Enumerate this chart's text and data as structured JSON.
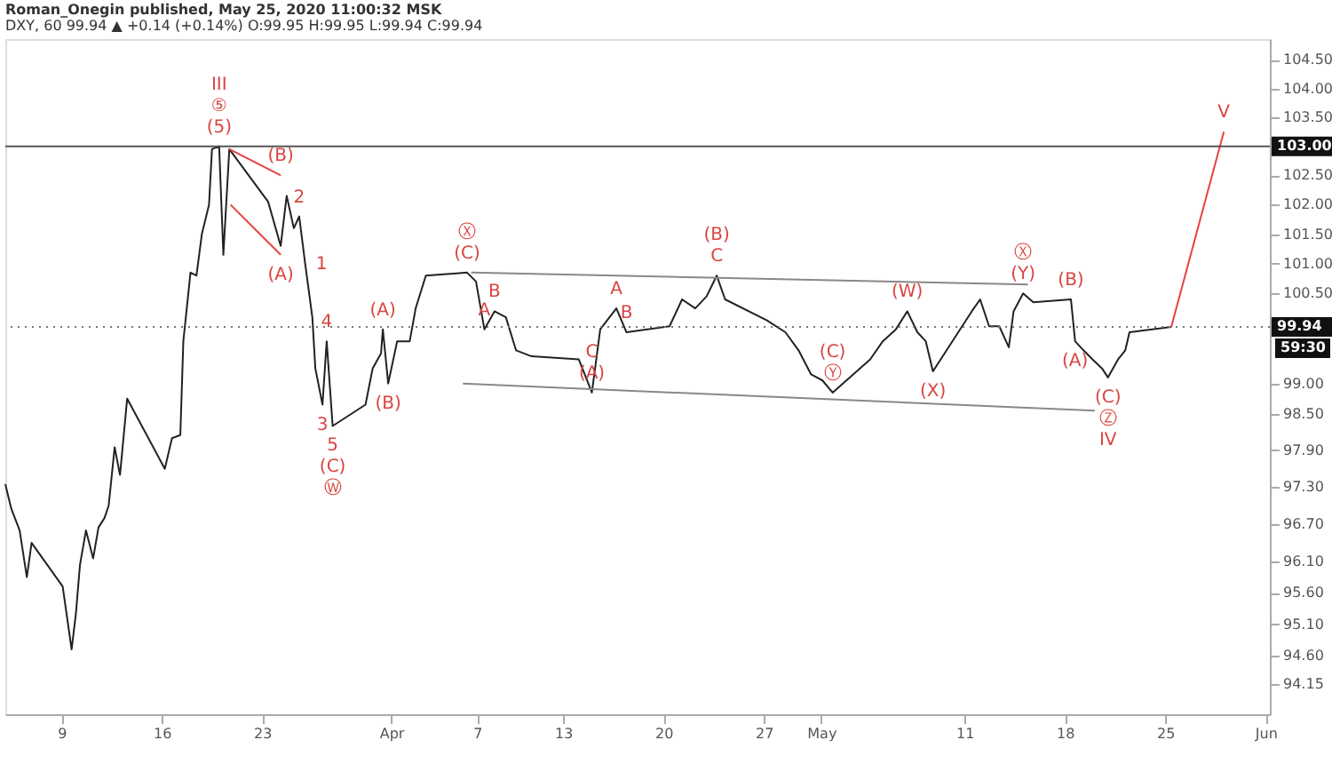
{
  "chart_data": {
    "type": "line",
    "title": "Roman_Onegin published, May 25, 2020 11:00:32 MSK",
    "subtitle": "DXY, 60  99.94 ▲ +0.14 (+0.14%) O:99.95 H:99.95 L:99.94 C:99.94",
    "log": "y",
    "grid": false,
    "line_style": "solid",
    "marker": "none",
    "xlim": [
      "2020-03-05T02:00",
      "2020-06-01T07:00"
    ],
    "xticks": [
      {
        "value": "2020-03-09",
        "label": "9"
      },
      {
        "value": "2020-03-16",
        "label": "16"
      },
      {
        "value": "2020-03-23",
        "label": "23"
      },
      {
        "value": "2020-04-01",
        "label": "Apr"
      },
      {
        "value": "2020-04-07",
        "label": "7"
      },
      {
        "value": "2020-04-13",
        "label": "13"
      },
      {
        "value": "2020-04-20",
        "label": "20"
      },
      {
        "value": "2020-04-27",
        "label": "27"
      },
      {
        "value": "2020-05-01",
        "label": "May"
      },
      {
        "value": "2020-05-11",
        "label": "11"
      },
      {
        "value": "2020-05-18",
        "label": "18"
      },
      {
        "value": "2020-05-25",
        "label": "25"
      },
      {
        "value": "2020-06-01",
        "label": "Jun"
      }
    ],
    "ylim": [
      93.68,
      104.86
    ],
    "yticks": [
      {
        "value": 94.15,
        "label": "94.15"
      },
      {
        "value": 94.6,
        "label": "94.60"
      },
      {
        "value": 95.1,
        "label": "95.10"
      },
      {
        "value": 95.6,
        "label": "95.60"
      },
      {
        "value": 96.1,
        "label": "96.10"
      },
      {
        "value": 96.7,
        "label": "96.70"
      },
      {
        "value": 97.3,
        "label": "97.30"
      },
      {
        "value": 97.9,
        "label": "97.90"
      },
      {
        "value": 98.5,
        "label": "98.50"
      },
      {
        "value": 99,
        "label": "99.00"
      },
      {
        "value": 100.5,
        "label": "100.50"
      },
      {
        "value": 101,
        "label": "101.00"
      },
      {
        "value": 101.5,
        "label": "101.50"
      },
      {
        "value": 102,
        "label": "102.00"
      },
      {
        "value": 102.5,
        "label": "102.50"
      },
      {
        "value": 103.5,
        "label": "103.50"
      },
      {
        "value": 104,
        "label": "104.00"
      },
      {
        "value": 104.5,
        "label": "104.50"
      }
    ],
    "ref_lines": [
      {
        "axis": "y",
        "value": 103.0,
        "label": "103.00",
        "color": "#555555",
        "line_style": "solid"
      },
      {
        "axis": "y",
        "value": 99.94,
        "label": "99.94",
        "color": "#777777",
        "line_style": "dotted"
      }
    ],
    "series": [
      {
        "color": "#222222",
        "x": [
          "2020-03-05T02:00",
          "2020-03-05T12:00",
          "2020-03-06T02:00",
          "2020-03-06T14:00",
          "2020-03-06T22:00",
          "2020-03-09T02:00",
          "2020-03-09T17:00",
          "2020-03-09T22:00",
          "2020-03-10T00:00",
          "2020-03-10T07:00",
          "2020-03-10T17:00",
          "2020-03-11T05:00",
          "2020-03-11T14:00",
          "2020-03-12T00:00",
          "2020-03-12T07:00",
          "2020-03-12T17:00",
          "2020-03-13T02:00",
          "2020-03-13T14:00",
          "2020-03-16T05:00",
          "2020-03-16T17:00",
          "2020-03-17T07:00",
          "2020-03-17T12:00",
          "2020-03-18T00:00",
          "2020-03-18T10:00",
          "2020-03-18T19:00",
          "2020-03-19T07:00",
          "2020-03-19T12:00",
          "2020-03-20T00:00",
          "2020-03-20T07:00",
          "2020-03-20T17:00",
          "2020-03-23T10:00",
          "2020-03-24T07:00",
          "2020-03-24T17:00",
          "2020-03-25T05:00",
          "2020-03-25T14:00",
          "2020-03-26T00:00",
          "2020-03-26T12:00",
          "2020-03-26T17:00",
          "2020-03-27T05:00",
          "2020-03-27T12:00",
          "2020-03-27T22:00",
          "2020-03-30T05:00",
          "2020-03-30T17:00",
          "2020-03-31T07:00",
          "2020-03-31T10:00",
          "2020-03-31T19:00",
          "2020-04-01T10:00",
          "2020-04-02T07:00",
          "2020-04-02T17:00",
          "2020-04-03T10:00",
          "2020-04-06T07:00",
          "2020-04-06T22:00",
          "2020-04-07T12:00",
          "2020-04-08T05:00",
          "2020-04-09T00:00",
          "2020-04-09T17:00",
          "2020-04-10T19:00",
          "2020-04-14T02:00",
          "2020-04-15T00:00",
          "2020-04-15T14:00",
          "2020-04-16T17:00",
          "2020-04-17T10:00",
          "2020-04-20T10:00",
          "2020-04-21T07:00",
          "2020-04-22T05:00",
          "2020-04-23T00:00",
          "2020-04-23T17:00",
          "2020-04-24T07:00",
          "2020-04-27T05:00",
          "2020-04-28T12:00",
          "2020-04-29T10:00",
          "2020-04-30T07:00",
          "2020-05-01T02:00",
          "2020-05-01T19:00",
          "2020-05-04T10:00",
          "2020-05-05T07:00",
          "2020-05-06T05:00",
          "2020-05-07T00:00",
          "2020-05-07T17:00",
          "2020-05-08T07:00",
          "2020-05-08T19:00",
          "2020-05-11T12:00",
          "2020-05-12T02:00",
          "2020-05-12T17:00",
          "2020-05-13T10:00",
          "2020-05-14T02:00",
          "2020-05-14T10:00",
          "2020-05-15T02:00",
          "2020-05-15T19:00",
          "2020-05-18T10:00",
          "2020-05-18T17:00",
          "2020-05-19T07:00",
          "2020-05-19T22:00",
          "2020-05-20T14:00",
          "2020-05-21T00:00",
          "2020-05-21T17:00",
          "2020-05-22T05:00",
          "2020-05-22T12:00",
          "2020-05-25T10:00"
        ],
        "values": [
          97.35,
          96.95,
          96.6,
          95.85,
          96.4,
          95.7,
          94.7,
          95.1,
          95.25,
          96.05,
          96.6,
          96.15,
          96.65,
          96.8,
          97.0,
          97.95,
          97.5,
          98.75,
          97.6,
          98.1,
          98.15,
          99.7,
          100.85,
          100.8,
          101.5,
          102.0,
          102.95,
          103.0,
          101.15,
          102.95,
          102.05,
          101.3,
          102.15,
          101.6,
          101.8,
          101.0,
          100.1,
          99.25,
          98.65,
          99.7,
          98.3,
          98.65,
          99.25,
          99.5,
          99.9,
          99.0,
          99.7,
          99.7,
          100.25,
          100.8,
          100.85,
          100.7,
          99.9,
          100.2,
          100.1,
          99.55,
          99.45,
          99.4,
          98.85,
          99.9,
          100.25,
          99.85,
          99.95,
          100.4,
          100.25,
          100.45,
          100.8,
          100.4,
          100.05,
          99.85,
          99.55,
          99.15,
          99.05,
          98.85,
          99.4,
          99.7,
          99.9,
          100.2,
          99.85,
          99.7,
          99.2,
          100.2,
          100.4,
          99.95,
          99.95,
          99.6,
          100.2,
          100.5,
          100.35,
          100.4,
          99.7,
          99.55,
          99.4,
          99.25,
          99.1,
          99.4,
          99.55,
          99.85,
          99.94
        ]
      },
      {
        "color": "#888888",
        "x": [
          "2020-04-06T14:00",
          "2020-05-15T10:00"
        ],
        "values": [
          100.85,
          100.65
        ]
      },
      {
        "color": "#888888",
        "x": [
          "2020-04-06T00:00",
          "2020-05-20T02:00"
        ],
        "values": [
          99.0,
          98.55
        ]
      },
      {
        "color": "#e8413e",
        "x": [
          "2020-03-20T17:00",
          "2020-03-24T07:00"
        ],
        "values": [
          102.95,
          102.5
        ]
      },
      {
        "color": "#e8413e",
        "x": [
          "2020-03-20T19:00",
          "2020-03-24T07:00"
        ],
        "values": [
          102.0,
          101.15
        ]
      },
      {
        "color": "#e8413e",
        "x": [
          "2020-05-25T10:00",
          "2020-05-29T02:00"
        ],
        "values": [
          99.94,
          103.25
        ]
      }
    ],
    "annotations": [
      {
        "text": "III",
        "x": "2020-03-20T00:00",
        "y": 103.0
      },
      {
        "text": "⑤",
        "x": "2020-03-20T00:00",
        "y": 103.0
      },
      {
        "text": "(5)",
        "x": "2020-03-20T00:00",
        "y": 103.0
      },
      {
        "text": "(B)",
        "x": "2020-03-24T07:00",
        "y": 102.5
      },
      {
        "text": "2",
        "x": "2020-03-25T14:00",
        "y": 101.8
      },
      {
        "text": "(A)",
        "x": "2020-03-24T07:00",
        "y": 101.15
      },
      {
        "text": "1",
        "x": "2020-03-26T00:00",
        "y": 101.0
      },
      {
        "text": "4",
        "x": "2020-03-27T12:00",
        "y": 99.7
      },
      {
        "text": "3",
        "x": "2020-03-27T05:00",
        "y": 98.65
      },
      {
        "text": "5",
        "x": "2020-03-27T22:00",
        "y": 98.3
      },
      {
        "text": "(C)",
        "x": "2020-03-27T22:00",
        "y": 98.3
      },
      {
        "text": "Ⓦ",
        "x": "2020-03-27T22:00",
        "y": 98.3
      },
      {
        "text": "(A)",
        "x": "2020-03-31T10:00",
        "y": 99.9
      },
      {
        "text": "(B)",
        "x": "2020-03-31T19:00",
        "y": 99.0
      },
      {
        "text": "Ⓧ",
        "x": "2020-04-06T07:00",
        "y": 100.85
      },
      {
        "text": "(C)",
        "x": "2020-04-06T07:00",
        "y": 100.85
      },
      {
        "text": "B",
        "x": "2020-04-08T05:00",
        "y": 100.2
      },
      {
        "text": "A",
        "x": "2020-04-07T12:00",
        "y": 99.9
      },
      {
        "text": "C",
        "x": "2020-04-15T00:00",
        "y": 98.85
      },
      {
        "text": "(A)",
        "x": "2020-04-15T00:00",
        "y": 98.85
      },
      {
        "text": "A",
        "x": "2020-04-16T17:00",
        "y": 100.25
      },
      {
        "text": "B",
        "x": "2020-04-17T10:00",
        "y": 99.85
      },
      {
        "text": "(B)",
        "x": "2020-04-23T17:00",
        "y": 100.8
      },
      {
        "text": "C",
        "x": "2020-04-23T17:00",
        "y": 100.8
      },
      {
        "text": "(W)",
        "x": "2020-05-07T00:00",
        "y": 100.2
      },
      {
        "text": "(X)",
        "x": "2020-05-08T19:00",
        "y": 99.2
      },
      {
        "text": "(C)",
        "x": "2020-05-01T19:00",
        "y": 98.85
      },
      {
        "text": "Ⓨ",
        "x": "2020-05-01T19:00",
        "y": 98.85
      },
      {
        "text": "Ⓧ",
        "x": "2020-05-15T02:00",
        "y": 100.5
      },
      {
        "text": "(Y)",
        "x": "2020-05-15T02:00",
        "y": 100.5
      },
      {
        "text": "(B)",
        "x": "2020-05-18T10:00",
        "y": 100.4
      },
      {
        "text": "(A)",
        "x": "2020-05-18T17:00",
        "y": 99.7
      },
      {
        "text": "(C)",
        "x": "2020-05-21T00:00",
        "y": 99.1
      },
      {
        "text": "Ⓩ",
        "x": "2020-05-21T00:00",
        "y": 99.1
      },
      {
        "text": "IV",
        "x": "2020-05-21T00:00",
        "y": 99.1
      },
      {
        "text": "V",
        "x": "2020-05-29T02:00",
        "y": 103.25
      },
      "59:30"
    ]
  }
}
